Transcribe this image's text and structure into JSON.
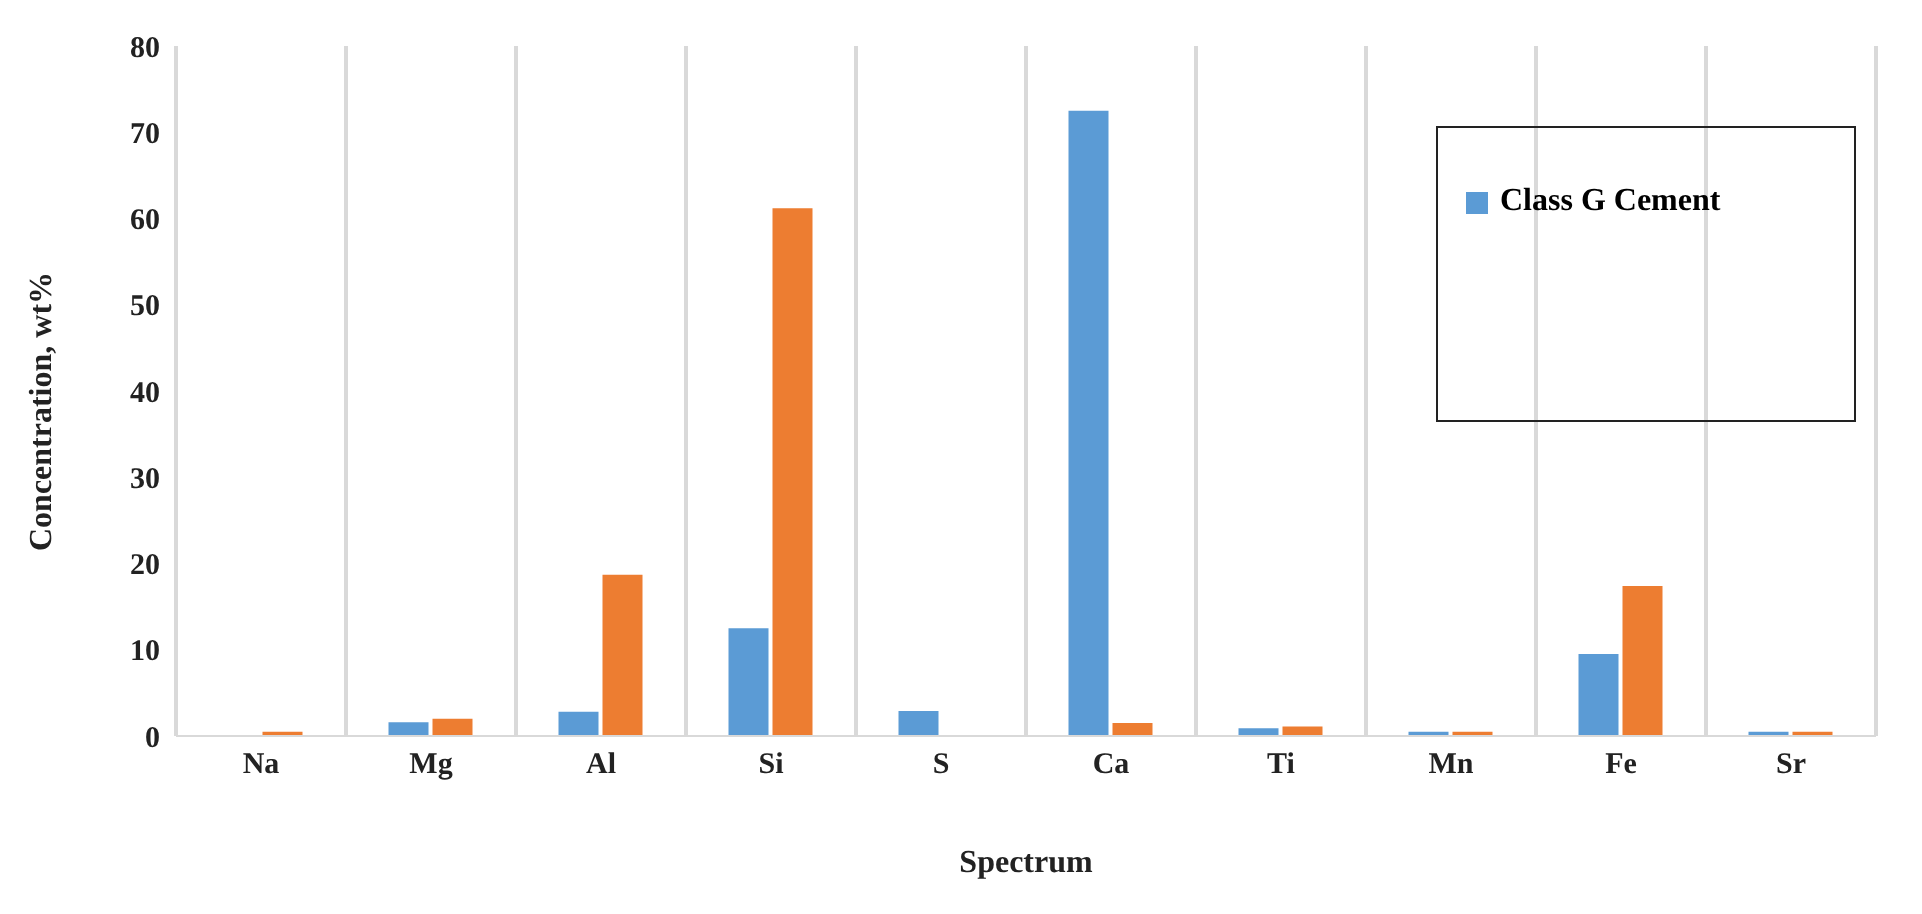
{
  "chart_data": {
    "type": "bar",
    "xlabel": "Spectrum",
    "ylabel": "Concentration, wt%",
    "categories": [
      "Na",
      "Mg",
      "Al",
      "Si",
      "S",
      "Ca",
      "Ti",
      "Mn",
      "Fe",
      "Sr"
    ],
    "series": [
      {
        "name": "Class G Cement",
        "color": "#5b9bd5",
        "values": [
          0,
          1.6,
          2.8,
          12.5,
          2.9,
          72.5,
          0.9,
          0.5,
          9.5,
          0.5
        ]
      },
      {
        "color": "#ed7d31",
        "values": [
          0.5,
          2.0,
          18.7,
          61.2,
          0,
          1.5,
          1.1,
          0.5,
          17.4,
          0.5
        ]
      }
    ],
    "ylim": [
      0,
      80
    ],
    "yticks": [
      0,
      10,
      20,
      30,
      40,
      50,
      60,
      70,
      80
    ],
    "grid": "x",
    "legend": "top right"
  }
}
